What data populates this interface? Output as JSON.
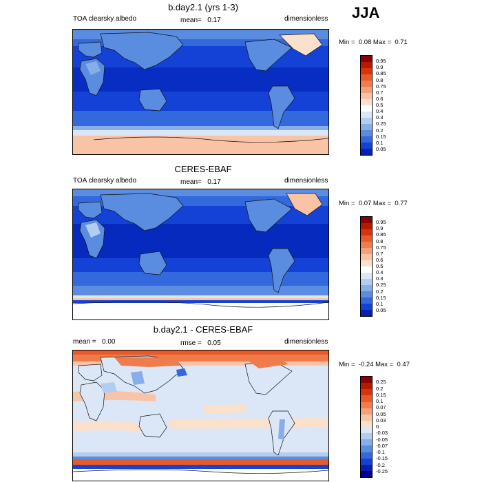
{
  "season": "JJA",
  "panels": [
    {
      "title": "b.day2.1 (yrs 1-3)",
      "left_label": "TOA clearsky albedo",
      "mean_label": "mean=",
      "mean_value": "0.17",
      "right_label": "dimensionless",
      "min_label": "Min =",
      "min_value": "0.08",
      "max_label": "Max =",
      "max_value": "0.71",
      "colorbar": {
        "levels": [
          "0.95",
          "0.9",
          "0.85",
          "0.8",
          "0.75",
          "0.7",
          "0.6",
          "0.5",
          "0.4",
          "0.3",
          "0.25",
          "0.2",
          "0.15",
          "0.1",
          "0.05"
        ],
        "colors": [
          "#8b0000",
          "#b51a00",
          "#d8340a",
          "#e85a2a",
          "#f07c4c",
          "#f5a078",
          "#f9c4a6",
          "#fbe0cc",
          "#ffffff",
          "#dbe7f7",
          "#b3cdf0",
          "#86aee8",
          "#5a8ce0",
          "#3468dd",
          "#1542d6",
          "#0020b4"
        ]
      }
    },
    {
      "title": "CERES-EBAF",
      "left_label": "TOA clearsky albedo",
      "mean_label": "mean=",
      "mean_value": "0.17",
      "right_label": "dimensionless",
      "min_label": "Min =",
      "min_value": "0.07",
      "max_label": "Max =",
      "max_value": "0.77",
      "colorbar": {
        "levels": [
          "0.95",
          "0.9",
          "0.85",
          "0.8",
          "0.75",
          "0.7",
          "0.6",
          "0.5",
          "0.4",
          "0.3",
          "0.25",
          "0.2",
          "0.15",
          "0.1",
          "0.05"
        ],
        "colors": [
          "#8b0000",
          "#b51a00",
          "#d8340a",
          "#e85a2a",
          "#f07c4c",
          "#f5a078",
          "#f9c4a6",
          "#fbe0cc",
          "#ffffff",
          "#dbe7f7",
          "#b3cdf0",
          "#86aee8",
          "#5a8ce0",
          "#3468dd",
          "#1542d6",
          "#0020b4"
        ]
      }
    },
    {
      "title": "b.day2.1 - CERES-EBAF",
      "left_label": "mean =",
      "left_value": "0.00",
      "rmse_label": "rmse =",
      "rmse_value": "0.05",
      "right_label": "dimensionless",
      "min_label": "Min =",
      "min_value": "-0.24",
      "max_label": "Max =",
      "max_value": "0.47",
      "colorbar": {
        "levels": [
          "0.25",
          "0.2",
          "0.15",
          "0.1",
          "0.07",
          "0.05",
          "0.03",
          "0",
          "-0.03",
          "-0.05",
          "-0.07",
          "-0.1",
          "-0.15",
          "-0.2",
          "-0.25"
        ],
        "colors": [
          "#8b0000",
          "#b51a00",
          "#d8340a",
          "#e85a2a",
          "#f07c4c",
          "#f5a078",
          "#f9c4a6",
          "#fbe0cc",
          "#dbe7f7",
          "#b3cdf0",
          "#86aee8",
          "#5a8ce0",
          "#3468dd",
          "#1542d6",
          "#0020b4",
          "#000090"
        ]
      }
    }
  ]
}
